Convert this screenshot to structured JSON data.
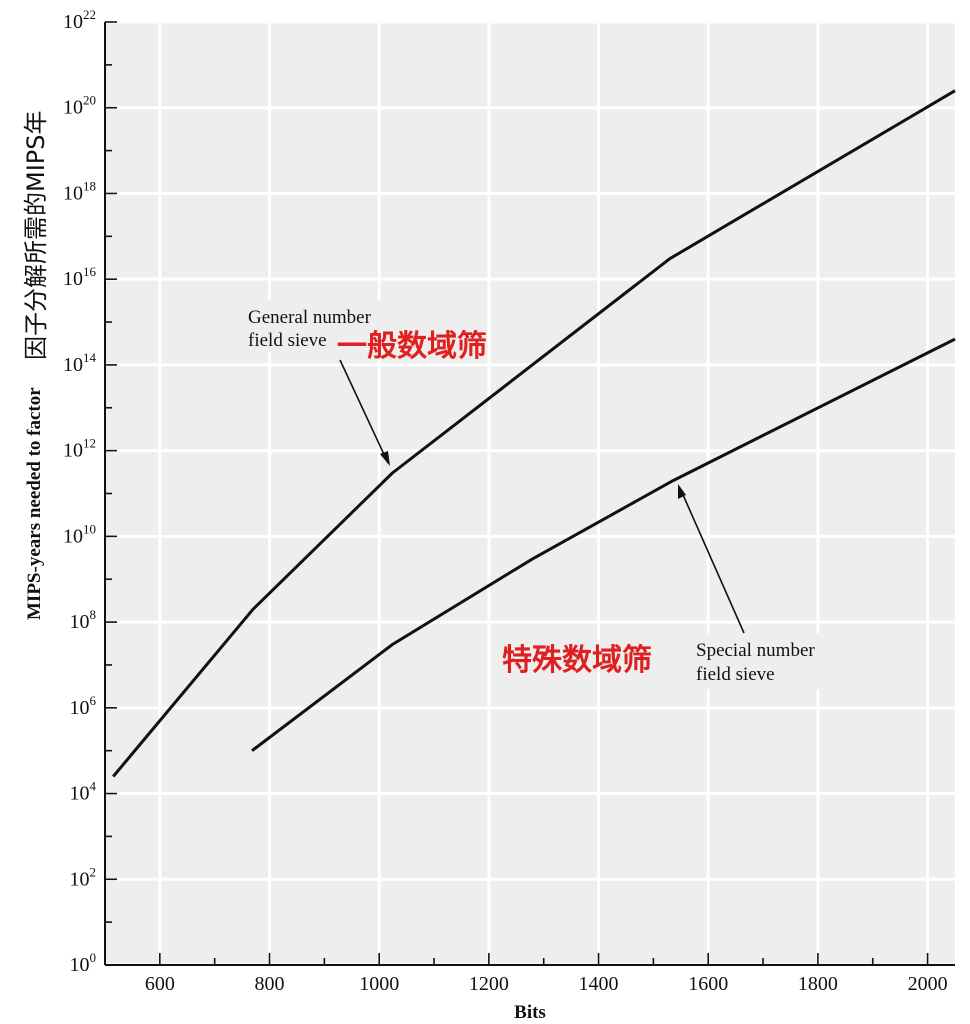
{
  "chart_data": {
    "type": "line",
    "title": "",
    "xlabel": "Bits",
    "ylabel": "MIPS-years needed to factor",
    "ylabel_cn": "因子分解所需的MIPS年",
    "xlim": [
      500,
      2050
    ],
    "ylim_log10": [
      0,
      22
    ],
    "y_scale": "log",
    "grid": true,
    "x_ticks": [
      "600",
      "800",
      "1000",
      "1200",
      "1400",
      "1600",
      "1800",
      "2000"
    ],
    "x_tick_values": [
      600,
      800,
      1000,
      1200,
      1400,
      1600,
      1800,
      2000
    ],
    "y_ticks": [
      {
        "base": "10",
        "exp": "0",
        "value": 1
      },
      {
        "base": "10",
        "exp": "2",
        "value": 100
      },
      {
        "base": "10",
        "exp": "4",
        "value": 10000
      },
      {
        "base": "10",
        "exp": "6",
        "value": 1000000
      },
      {
        "base": "10",
        "exp": "8",
        "value": 100000000
      },
      {
        "base": "10",
        "exp": "10",
        "value": 10000000000
      },
      {
        "base": "10",
        "exp": "12",
        "value": 1000000000000
      },
      {
        "base": "10",
        "exp": "14",
        "value": 100000000000000
      },
      {
        "base": "10",
        "exp": "16",
        "value": 10000000000000000
      },
      {
        "base": "10",
        "exp": "18",
        "value": 1000000000000000000
      },
      {
        "base": "10",
        "exp": "20",
        "value": 1e+20
      },
      {
        "base": "10",
        "exp": "22",
        "value": 1e+22
      }
    ],
    "series": [
      {
        "name": "",
        "annotation_lines": [
          "General number",
          "field sieve"
        ],
        "annotation_cn": "一般数域筛",
        "x": [
          515,
          770,
          1024,
          1530,
          2050
        ],
        "y": [
          25000.0,
          200000000.0,
          300000000000.0,
          3e+16,
          2.5e+20
        ]
      },
      {
        "name": "",
        "annotation_lines": [
          "Special number",
          "field sieve"
        ],
        "annotation_cn": "特殊数域筛",
        "x": [
          768,
          1024,
          1280,
          1536,
          2050
        ],
        "y": [
          100000.0,
          30000000.0,
          3000000000.0,
          200000000000.0,
          400000000000000.0
        ]
      }
    ]
  },
  "colors": {
    "plot_background": "#eeeeee",
    "grid": "#ffffff",
    "line": "#111111",
    "annotation_cn": "#e01f1f"
  }
}
